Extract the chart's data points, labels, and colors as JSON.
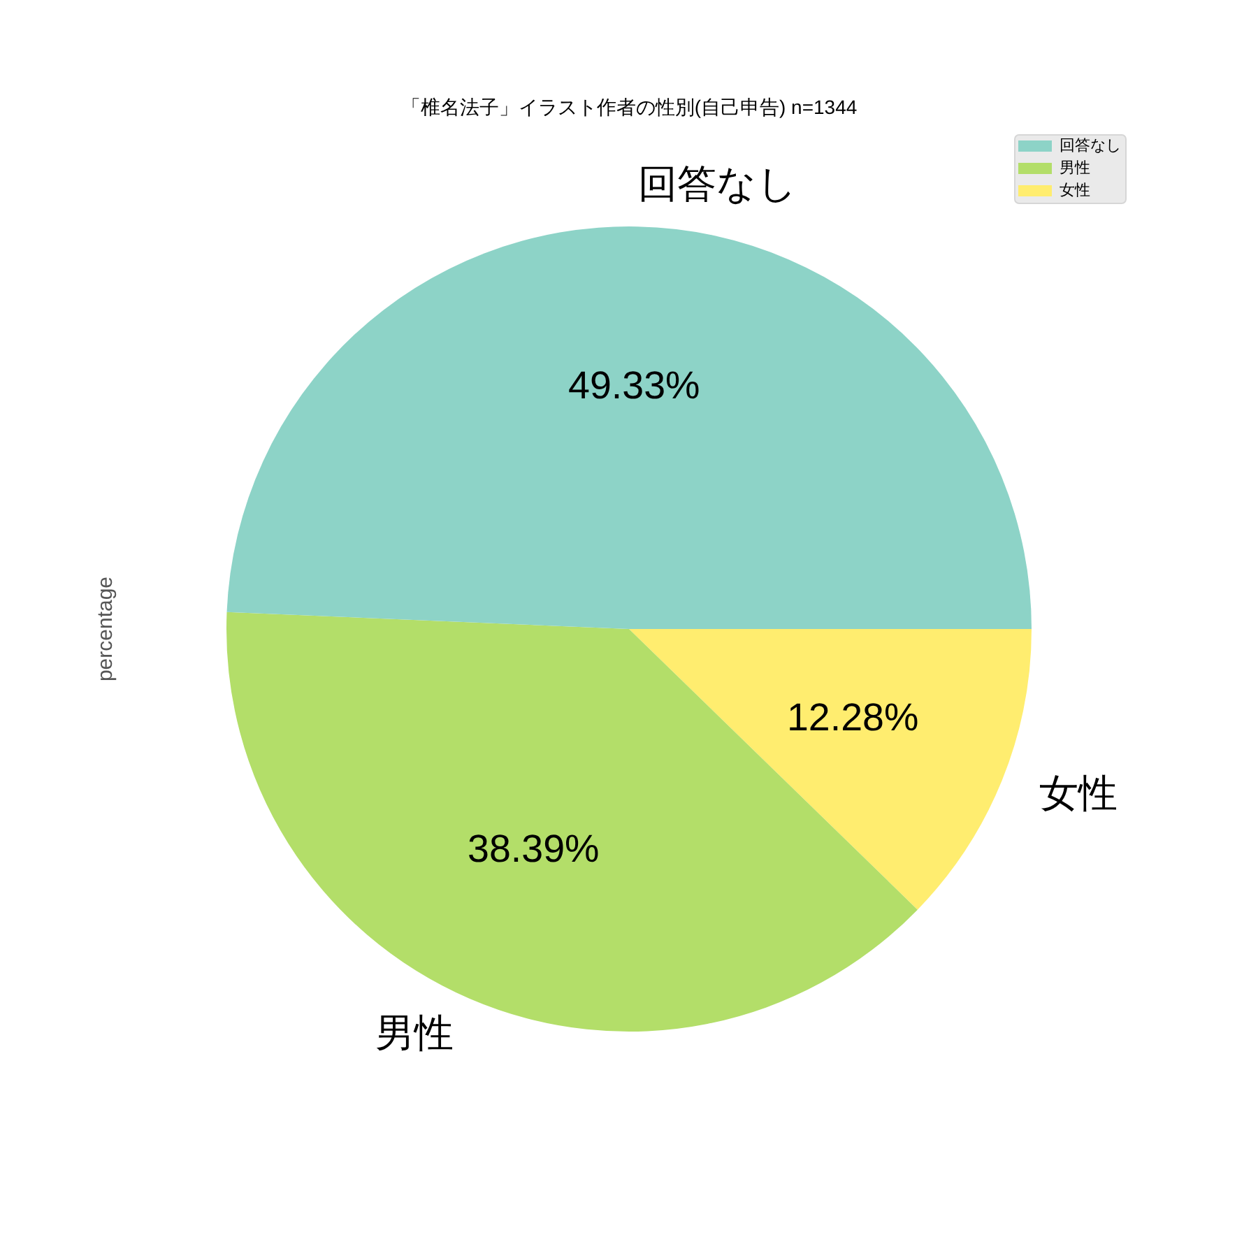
{
  "chart_data": {
    "type": "pie",
    "title": "「椎名法子」イラスト作者の性別(自己申告) n=1344",
    "ylabel": "percentage",
    "categories": [
      "回答なし",
      "男性",
      "女性"
    ],
    "values": [
      49.33,
      38.39,
      12.28
    ],
    "colors": [
      "#8dd3c7",
      "#b3de69",
      "#ffed6f"
    ],
    "value_labels": [
      "49.33%",
      "38.39%",
      "12.28%"
    ],
    "legend": "top right"
  }
}
